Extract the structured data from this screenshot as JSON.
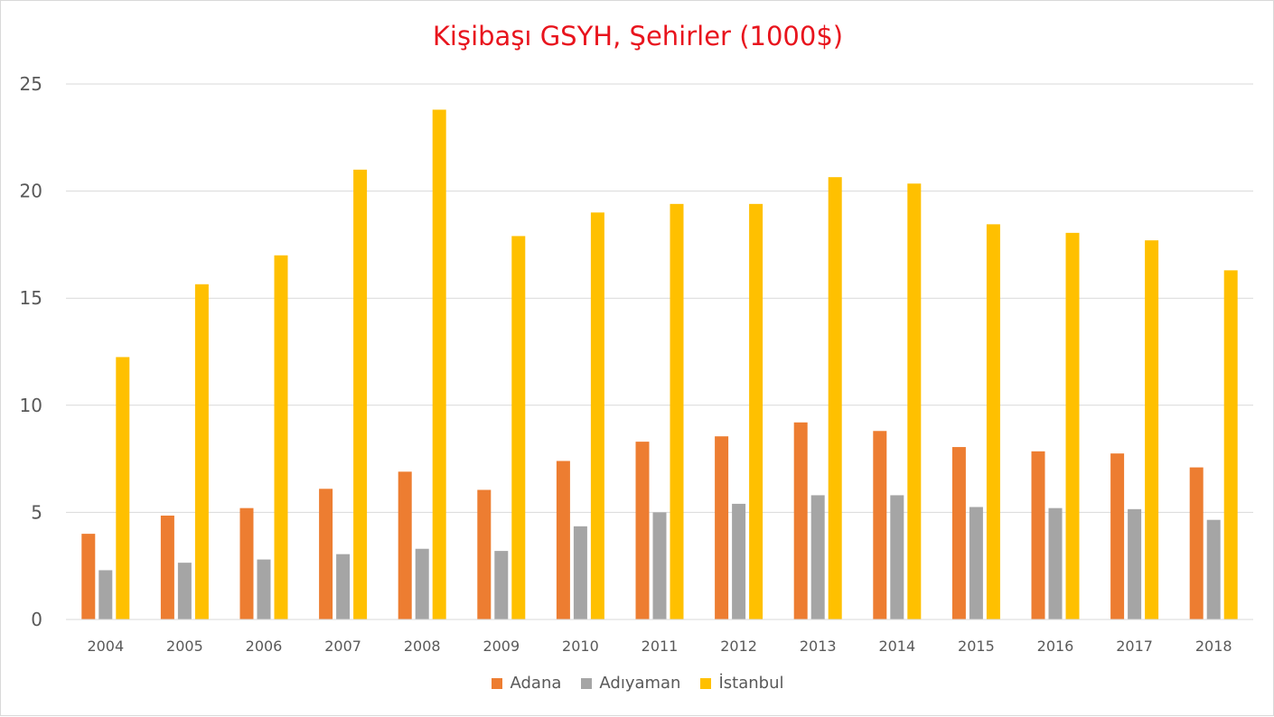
{
  "chart_data": {
    "type": "bar",
    "title": "Kişibaşı GSYH, Şehirler (1000$)",
    "xlabel": "",
    "ylabel": "",
    "ylim": [
      0,
      25
    ],
    "yticks": [
      0,
      5,
      10,
      15,
      20,
      25
    ],
    "grid": true,
    "legend_position": "bottom",
    "categories": [
      "2004",
      "2005",
      "2006",
      "2007",
      "2008",
      "2009",
      "2010",
      "2011",
      "2012",
      "2013",
      "2014",
      "2015",
      "2016",
      "2017",
      "2018"
    ],
    "series": [
      {
        "name": "Adana",
        "color": "#ed7d31",
        "values": [
          4.0,
          4.85,
          5.2,
          6.1,
          6.9,
          6.05,
          7.4,
          8.3,
          8.55,
          9.2,
          8.8,
          8.05,
          7.85,
          7.75,
          7.1
        ]
      },
      {
        "name": "Adıyaman",
        "color": "#a5a5a5",
        "values": [
          2.3,
          2.65,
          2.8,
          3.05,
          3.3,
          3.2,
          4.35,
          5.0,
          5.4,
          5.8,
          5.8,
          5.25,
          5.2,
          5.15,
          4.65
        ]
      },
      {
        "name": "İstanbul",
        "color": "#ffc000",
        "values": [
          12.25,
          15.65,
          17.0,
          21.0,
          23.8,
          17.9,
          19.0,
          19.4,
          19.4,
          20.65,
          20.35,
          18.45,
          18.05,
          17.7,
          16.3
        ]
      }
    ]
  }
}
